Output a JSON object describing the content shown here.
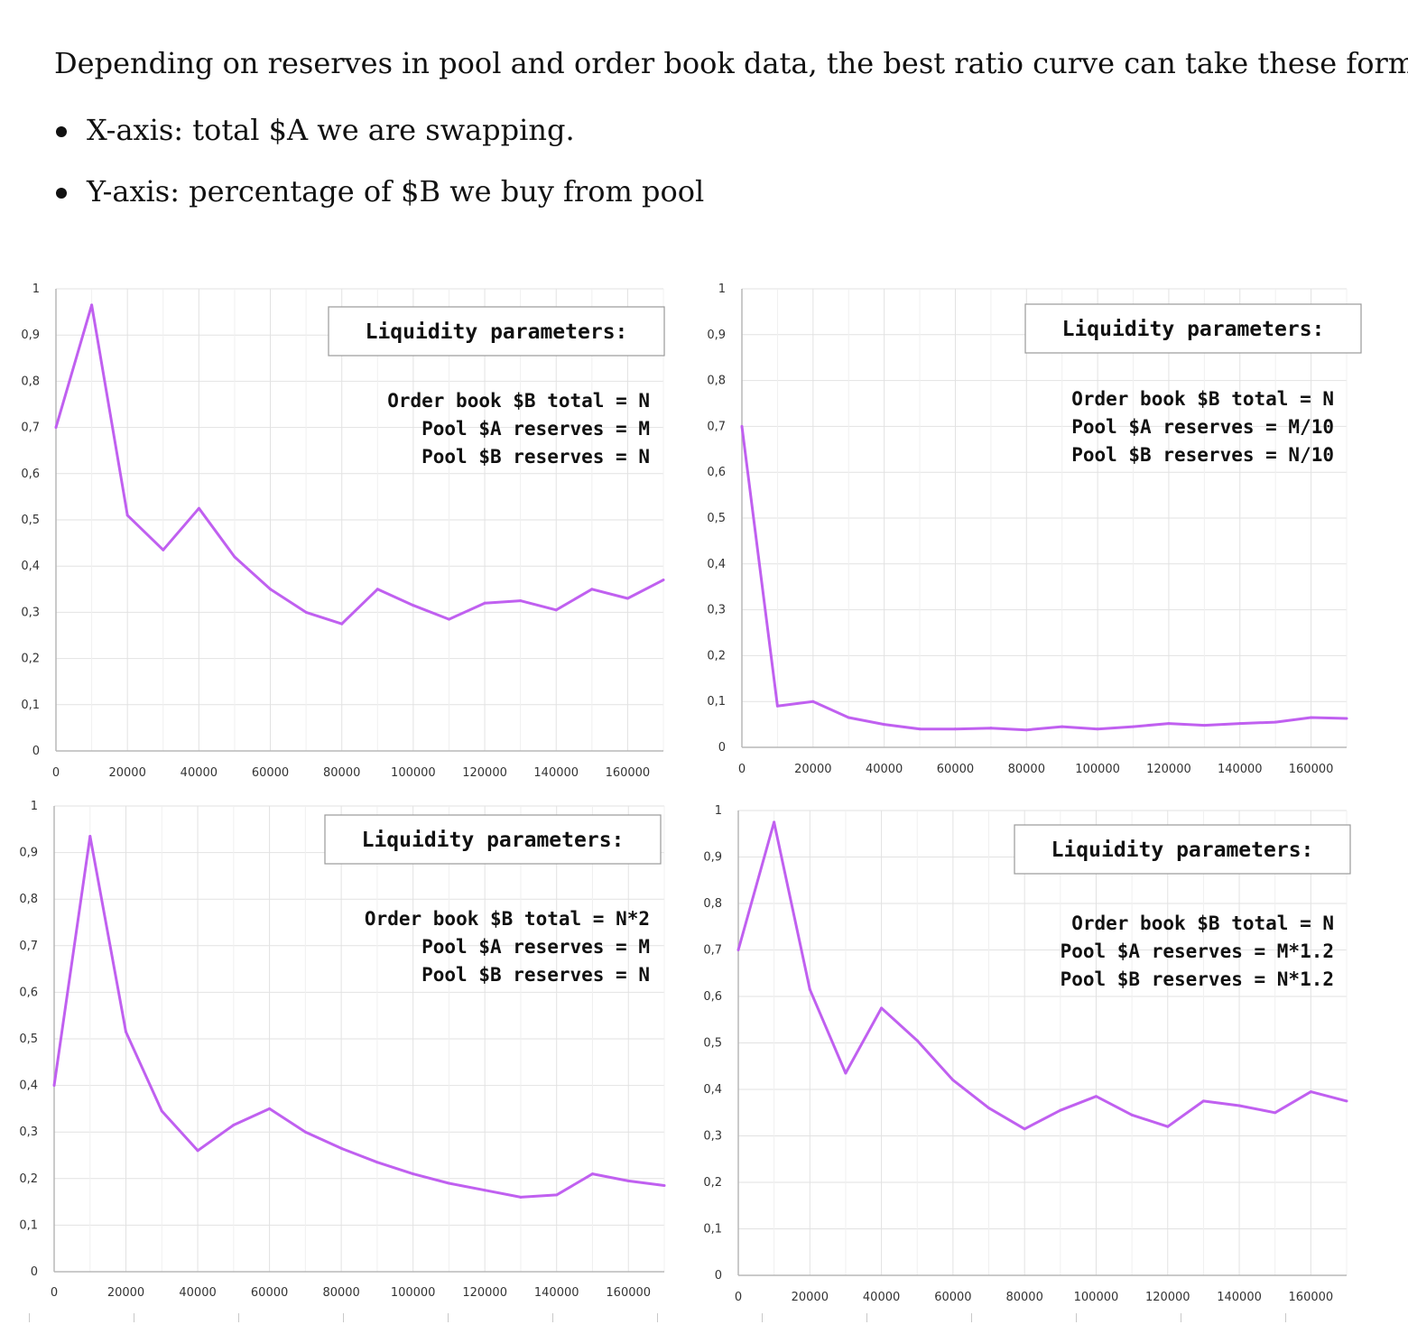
{
  "intro": "Depending on reserves in pool and order book data, the best ratio curve can take these forms.",
  "bullets": [
    "X-axis: total $A we are swapping.",
    "Y-axis: percentage of $B we buy from pool"
  ],
  "style": {
    "line_color": "#c060f0",
    "grid_color": "#e2e2e2",
    "axis_color": "#b8b8b8"
  },
  "chart_data": [
    {
      "type": "line",
      "x": [
        0,
        10000,
        20000,
        30000,
        40000,
        50000,
        60000,
        70000,
        80000,
        90000,
        100000,
        110000,
        120000,
        130000,
        140000,
        150000,
        160000,
        170000
      ],
      "values": [
        0.7,
        0.965,
        0.51,
        0.435,
        0.525,
        0.42,
        0.35,
        0.3,
        0.275,
        0.35,
        0.315,
        0.285,
        0.32,
        0.325,
        0.305,
        0.35,
        0.33,
        0.37
      ],
      "ylim": [
        0,
        1
      ],
      "xlim": [
        0,
        170000
      ],
      "yticks": [
        "0",
        "0,1",
        "0,2",
        "0,3",
        "0,4",
        "0,5",
        "0,6",
        "0,7",
        "0,8",
        "0,9",
        "1"
      ],
      "xticks": [
        "0",
        "20000",
        "40000",
        "60000",
        "80000",
        "100000",
        "120000",
        "140000",
        "160000"
      ],
      "grid": true,
      "box_title": "Liquidity parameters:",
      "params": [
        "Order book $B total = N",
        "Pool $A reserves = M",
        "Pool $B reserves = N"
      ]
    },
    {
      "type": "line",
      "x": [
        0,
        10000,
        20000,
        30000,
        40000,
        50000,
        60000,
        70000,
        80000,
        90000,
        100000,
        110000,
        120000,
        130000,
        140000,
        150000,
        160000,
        170000
      ],
      "values": [
        0.7,
        0.09,
        0.1,
        0.065,
        0.05,
        0.04,
        0.04,
        0.042,
        0.038,
        0.045,
        0.04,
        0.045,
        0.052,
        0.048,
        0.052,
        0.055,
        0.065,
        0.063
      ],
      "ylim": [
        0,
        1
      ],
      "xlim": [
        0,
        170000
      ],
      "yticks": [
        "0",
        "0,1",
        "0,2",
        "0,3",
        "0,4",
        "0,5",
        "0,6",
        "0,7",
        "0,8",
        "0,9",
        "1"
      ],
      "xticks": [
        "0",
        "20000",
        "40000",
        "60000",
        "80000",
        "100000",
        "120000",
        "140000",
        "160000"
      ],
      "grid": true,
      "box_title": "Liquidity parameters:",
      "params": [
        "Order book $B total = N",
        "Pool $A reserves = M/10",
        "Pool $B reserves = N/10"
      ]
    },
    {
      "type": "line",
      "x": [
        0,
        10000,
        20000,
        30000,
        40000,
        50000,
        60000,
        70000,
        80000,
        90000,
        100000,
        110000,
        120000,
        130000,
        140000,
        150000,
        160000,
        170000
      ],
      "values": [
        0.4,
        0.935,
        0.515,
        0.345,
        0.26,
        0.315,
        0.35,
        0.3,
        0.265,
        0.235,
        0.21,
        0.19,
        0.175,
        0.16,
        0.165,
        0.21,
        0.195,
        0.185
      ],
      "ylim": [
        0,
        1
      ],
      "xlim": [
        0,
        170000
      ],
      "yticks": [
        "0",
        "0,1",
        "0,2",
        "0,3",
        "0,4",
        "0,5",
        "0,6",
        "0,7",
        "0,8",
        "0,9",
        "1"
      ],
      "xticks": [
        "0",
        "20000",
        "40000",
        "60000",
        "80000",
        "100000",
        "120000",
        "140000",
        "160000"
      ],
      "grid": true,
      "box_title": "Liquidity parameters:",
      "params": [
        "Order book $B total = N*2",
        "Pool $A reserves = M",
        "Pool $B reserves = N"
      ]
    },
    {
      "type": "line",
      "x": [
        0,
        10000,
        20000,
        30000,
        40000,
        50000,
        60000,
        70000,
        80000,
        90000,
        100000,
        110000,
        120000,
        130000,
        140000,
        150000,
        160000,
        170000
      ],
      "values": [
        0.7,
        0.975,
        0.615,
        0.435,
        0.575,
        0.505,
        0.42,
        0.36,
        0.315,
        0.355,
        0.385,
        0.345,
        0.32,
        0.375,
        0.365,
        0.35,
        0.395,
        0.375
      ],
      "ylim": [
        0,
        1
      ],
      "xlim": [
        0,
        170000
      ],
      "yticks": [
        "0",
        "0,1",
        "0,2",
        "0,3",
        "0,4",
        "0,5",
        "0,6",
        "0,7",
        "0,8",
        "0,9",
        "1"
      ],
      "xticks": [
        "0",
        "20000",
        "40000",
        "60000",
        "80000",
        "100000",
        "120000",
        "140000",
        "160000"
      ],
      "grid": true,
      "box_title": "Liquidity parameters:",
      "params": [
        "Order book $B total = N",
        "Pool $A reserves = M*1.2",
        "Pool $B reserves = N*1.2"
      ]
    }
  ]
}
